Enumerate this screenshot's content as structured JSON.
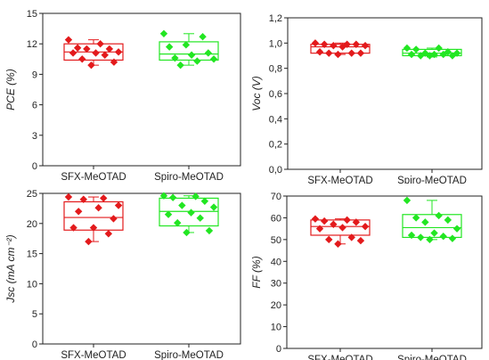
{
  "figure": {
    "colors": {
      "sfx": "#e31a1c",
      "spiro": "#22e622",
      "axis": "#222222"
    }
  },
  "chart_data": [
    {
      "id": "pce",
      "type": "box",
      "ylabel": "PCE (%)",
      "ylim": [
        0,
        15
      ],
      "yticks": [
        0,
        3,
        6,
        9,
        12,
        15
      ],
      "tick_decimals": 0,
      "categories": [
        "SFX-MeOTAD",
        "Spiro-MeOTAD"
      ],
      "series": [
        {
          "color": "#e31a1c",
          "box": {
            "q1": 10.4,
            "median": 11.2,
            "q3": 12.0,
            "whisker_low": 9.9,
            "whisker_high": 12.4
          },
          "points": [
            12.4,
            12.0,
            11.6,
            11.5,
            11.5,
            11.2,
            11.1,
            11.1,
            10.9,
            10.5,
            10.2,
            9.9
          ]
        },
        {
          "color": "#22e622",
          "box": {
            "q1": 10.4,
            "median": 11.0,
            "q3": 12.2,
            "whisker_low": 9.9,
            "whisker_high": 13.0
          },
          "points": [
            13.0,
            12.7,
            11.9,
            11.7,
            11.1,
            10.9,
            10.6,
            10.5,
            10.3,
            9.9
          ]
        }
      ]
    },
    {
      "id": "voc",
      "type": "box",
      "ylabel": "Voc (V)",
      "ylim": [
        0,
        1.2
      ],
      "yticks": [
        0,
        0.2,
        0.4,
        0.6,
        0.8,
        1.0,
        1.2
      ],
      "tick_decimals": 1,
      "decimal_sep": ",",
      "categories": [
        "SFX-MeOTAD",
        "Spiro-MeOTAD"
      ],
      "series": [
        {
          "color": "#e31a1c",
          "box": {
            "q1": 0.92,
            "median": 0.97,
            "q3": 0.99,
            "whisker_low": 0.91,
            "whisker_high": 1.0
          },
          "points": [
            1.0,
            0.99,
            0.99,
            0.99,
            0.98,
            0.98,
            0.97,
            0.93,
            0.92,
            0.92,
            0.92,
            0.91
          ]
        },
        {
          "color": "#22e622",
          "box": {
            "q1": 0.9,
            "median": 0.92,
            "q3": 0.95,
            "whisker_low": 0.89,
            "whisker_high": 0.96
          },
          "points": [
            0.96,
            0.96,
            0.95,
            0.93,
            0.92,
            0.92,
            0.91,
            0.91,
            0.91,
            0.9,
            0.9,
            0.9
          ]
        }
      ]
    },
    {
      "id": "jsc",
      "type": "box",
      "ylabel": "Jsc (mA cm⁻²)",
      "ylim": [
        0,
        25
      ],
      "yticks": [
        0,
        5,
        10,
        15,
        20,
        25
      ],
      "tick_decimals": 0,
      "categories": [
        "SFX-MeOTAD",
        "Spiro-MeOTAD"
      ],
      "series": [
        {
          "color": "#e31a1c",
          "box": {
            "q1": 18.9,
            "median": 21.0,
            "q3": 23.6,
            "whisker_low": 17.0,
            "whisker_high": 24.4
          },
          "points": [
            24.4,
            24.2,
            24.0,
            23.0,
            22.6,
            22.0,
            20.8,
            19.3,
            19.3,
            18.3,
            17.0
          ]
        },
        {
          "color": "#22e622",
          "box": {
            "q1": 19.6,
            "median": 22.0,
            "q3": 24.2,
            "whisker_low": 18.5,
            "whisker_high": 24.6
          },
          "points": [
            24.6,
            24.5,
            24.3,
            23.7,
            23.0,
            22.7,
            21.8,
            21.5,
            20.9,
            20.1,
            18.8,
            18.5
          ]
        }
      ]
    },
    {
      "id": "ff",
      "type": "box",
      "ylabel": "FF (%)",
      "ylim": [
        0,
        70
      ],
      "yticks": [
        0,
        10,
        20,
        30,
        40,
        50,
        60,
        70
      ],
      "tick_decimals": 0,
      "categories": [
        "SFX-MeOTAD",
        "Spiro-MeOTAD"
      ],
      "series": [
        {
          "color": "#e31a1c",
          "box": {
            "q1": 52.0,
            "median": 56.0,
            "q3": 59.0,
            "whisker_low": 48.0,
            "whisker_high": 59.5
          },
          "points": [
            59.5,
            59.0,
            58.5,
            58.0,
            57.0,
            56.0,
            55.5,
            55.0,
            51.0,
            50.0,
            49.5,
            48.0
          ]
        },
        {
          "color": "#22e622",
          "box": {
            "q1": 51.0,
            "median": 55.5,
            "q3": 61.5,
            "whisker_low": 50.0,
            "whisker_high": 68.0
          },
          "points": [
            68.0,
            61.0,
            60.0,
            59.0,
            58.0,
            55.0,
            53.0,
            52.0,
            51.5,
            51.0,
            50.5,
            50.0
          ]
        }
      ]
    }
  ]
}
